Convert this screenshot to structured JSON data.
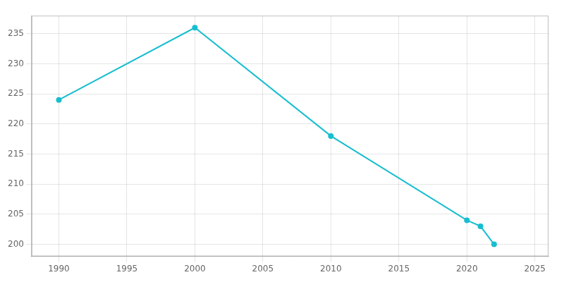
{
  "chart_data": {
    "type": "line",
    "x": [
      1990,
      2000,
      2010,
      2020,
      2021,
      2022
    ],
    "values": [
      224,
      236,
      218,
      204,
      203,
      200
    ],
    "color": "#17becf",
    "marker": "circle",
    "xlim": [
      1988,
      2026
    ],
    "ylim": [
      198,
      238
    ],
    "xticks": [
      1990,
      1995,
      2000,
      2005,
      2010,
      2015,
      2020,
      2025
    ],
    "yticks": [
      200,
      205,
      210,
      215,
      220,
      225,
      230,
      235
    ],
    "grid": true
  }
}
